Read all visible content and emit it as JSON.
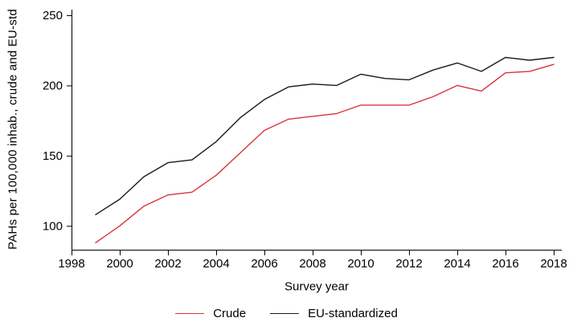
{
  "figure": {
    "background": "#ffffff"
  },
  "chart_data": {
    "type": "line",
    "title": "",
    "xlabel": "Survey year",
    "ylabel": "PAHs per 100,000 inhab., crude and EU-std",
    "x": [
      1999,
      2000,
      2001,
      2002,
      2003,
      2004,
      2005,
      2006,
      2007,
      2008,
      2009,
      2010,
      2011,
      2012,
      2013,
      2014,
      2015,
      2016,
      2017,
      2018
    ],
    "series": [
      {
        "name": "Crude",
        "color": "#dc323c",
        "values": [
          88,
          100,
          114,
          122,
          124,
          136,
          152,
          168,
          176,
          178,
          180,
          186,
          186,
          186,
          192,
          200,
          196,
          209,
          210,
          215
        ]
      },
      {
        "name": "EU-standardized",
        "color": "#1a1a1a",
        "values": [
          108,
          119,
          135,
          145,
          147,
          160,
          177,
          190,
          199,
          201,
          200,
          208,
          205,
          204,
          211,
          216,
          210,
          220,
          218,
          220
        ]
      }
    ],
    "xlim": [
      1998,
      2018
    ],
    "ylim": [
      83,
      250
    ],
    "xticks": [
      1998,
      2000,
      2002,
      2004,
      2006,
      2008,
      2010,
      2012,
      2014,
      2016,
      2018
    ],
    "yticks": [
      100,
      150,
      200,
      250
    ],
    "grid": false,
    "legend_position": "bottom",
    "axis_color": "#000000"
  }
}
